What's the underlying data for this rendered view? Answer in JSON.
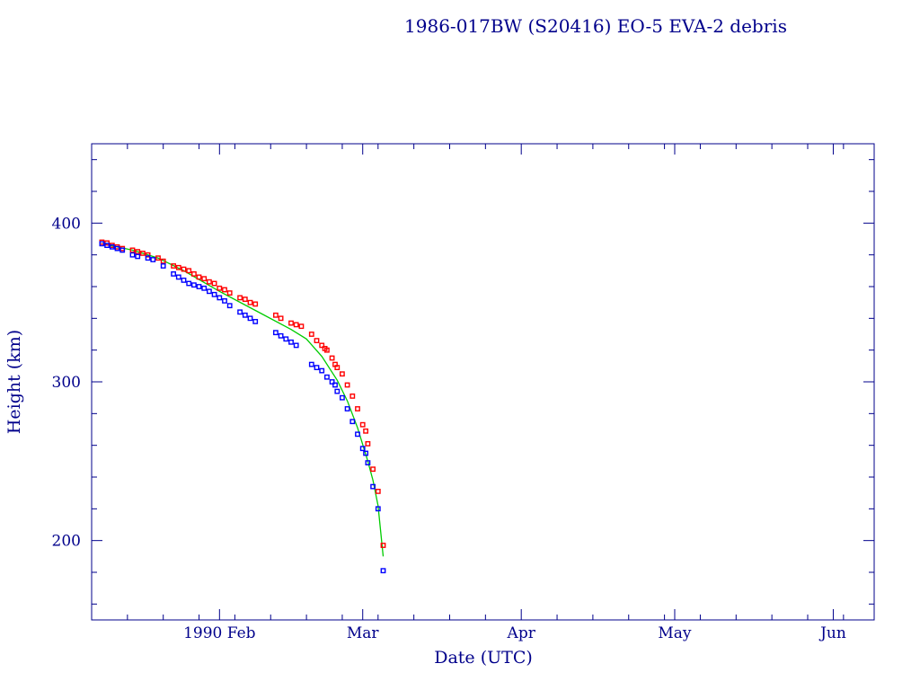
{
  "chart_data": {
    "type": "scatter",
    "title": "1986-017BW (S20416) EO-5 EVA-2 debris",
    "xlabel": "Date (UTC)",
    "ylabel": "Height (km)",
    "x_unit": "date",
    "xlim": [
      "1990-01-07",
      "1990-06-09"
    ],
    "ylim": [
      150,
      450
    ],
    "x_ticks": [
      {
        "date": "1990-02-01",
        "label": "1990 Feb"
      },
      {
        "date": "1990-03-01",
        "label": "Mar"
      },
      {
        "date": "1990-04-01",
        "label": "Apr"
      },
      {
        "date": "1990-05-01",
        "label": "May"
      },
      {
        "date": "1990-06-01",
        "label": "Jun"
      }
    ],
    "y_ticks": [
      200,
      300,
      400
    ],
    "grid": false,
    "legend": "none",
    "series": [
      {
        "role": "apogee",
        "color": "#ff0000",
        "marker": "square",
        "points": [
          [
            "1990-01-09",
            388
          ],
          [
            "1990-01-10",
            387.5
          ],
          [
            "1990-01-11",
            386
          ],
          [
            "1990-01-12",
            385
          ],
          [
            "1990-01-13",
            384
          ],
          [
            "1990-01-15",
            383
          ],
          [
            "1990-01-16",
            382
          ],
          [
            "1990-01-17",
            381
          ],
          [
            "1990-01-18",
            380
          ],
          [
            "1990-01-20",
            378
          ],
          [
            "1990-01-21",
            376
          ],
          [
            "1990-01-23",
            373
          ],
          [
            "1990-01-24",
            372
          ],
          [
            "1990-01-25",
            371
          ],
          [
            "1990-01-26",
            370
          ],
          [
            "1990-01-27",
            368
          ],
          [
            "1990-01-28",
            366
          ],
          [
            "1990-01-29",
            365
          ],
          [
            "1990-01-30",
            363
          ],
          [
            "1990-01-31",
            362
          ],
          [
            "1990-02-01",
            359
          ],
          [
            "1990-02-02",
            358
          ],
          [
            "1990-02-03",
            356
          ],
          [
            "1990-02-05",
            353
          ],
          [
            "1990-02-06",
            352
          ],
          [
            "1990-02-07",
            350
          ],
          [
            "1990-02-08",
            349
          ],
          [
            "1990-02-12",
            342
          ],
          [
            "1990-02-13",
            340
          ],
          [
            "1990-02-15",
            337
          ],
          [
            "1990-02-16",
            336
          ],
          [
            "1990-02-17",
            335
          ],
          [
            "1990-02-19",
            330
          ],
          [
            "1990-02-20",
            326
          ],
          [
            "1990-02-21",
            323
          ],
          [
            "1990-02-21.6",
            321
          ],
          [
            "1990-02-22",
            320
          ],
          [
            "1990-02-23",
            315
          ],
          [
            "1990-02-23.6",
            311
          ],
          [
            "1990-02-24",
            309
          ],
          [
            "1990-02-25",
            305
          ],
          [
            "1990-02-26",
            298
          ],
          [
            "1990-02-27",
            291
          ],
          [
            "1990-02-28",
            283
          ],
          [
            "1990-03-01",
            273
          ],
          [
            "1990-03-01.6",
            269
          ],
          [
            "1990-03-02",
            261
          ],
          [
            "1990-03-03",
            245
          ],
          [
            "1990-03-04",
            231
          ],
          [
            "1990-03-05",
            197
          ]
        ]
      },
      {
        "role": "perigee",
        "color": "#0000ff",
        "marker": "square",
        "points": [
          [
            "1990-01-09",
            387
          ],
          [
            "1990-01-10",
            386
          ],
          [
            "1990-01-11",
            385
          ],
          [
            "1990-01-12",
            384
          ],
          [
            "1990-01-13",
            383
          ],
          [
            "1990-01-15",
            380
          ],
          [
            "1990-01-16",
            379
          ],
          [
            "1990-01-18",
            378
          ],
          [
            "1990-01-19",
            377
          ],
          [
            "1990-01-21",
            373
          ],
          [
            "1990-01-23",
            368
          ],
          [
            "1990-01-24",
            366
          ],
          [
            "1990-01-25",
            364
          ],
          [
            "1990-01-26",
            362
          ],
          [
            "1990-01-27",
            361
          ],
          [
            "1990-01-28",
            360
          ],
          [
            "1990-01-29",
            359
          ],
          [
            "1990-01-30",
            357
          ],
          [
            "1990-01-31",
            355
          ],
          [
            "1990-02-01",
            353
          ],
          [
            "1990-02-02",
            351
          ],
          [
            "1990-02-03",
            348
          ],
          [
            "1990-02-05",
            344
          ],
          [
            "1990-02-06",
            342
          ],
          [
            "1990-02-07",
            340
          ],
          [
            "1990-02-08",
            338
          ],
          [
            "1990-02-12",
            331
          ],
          [
            "1990-02-13",
            329
          ],
          [
            "1990-02-14",
            327
          ],
          [
            "1990-02-15",
            325
          ],
          [
            "1990-02-16",
            323
          ],
          [
            "1990-02-19",
            311
          ],
          [
            "1990-02-20",
            309
          ],
          [
            "1990-02-21",
            307
          ],
          [
            "1990-02-22",
            303
          ],
          [
            "1990-02-23",
            300
          ],
          [
            "1990-02-23.6",
            298
          ],
          [
            "1990-02-24",
            294
          ],
          [
            "1990-02-25",
            290
          ],
          [
            "1990-02-26",
            283
          ],
          [
            "1990-02-27",
            275
          ],
          [
            "1990-02-28",
            267
          ],
          [
            "1990-03-01",
            258
          ],
          [
            "1990-03-01.6",
            255
          ],
          [
            "1990-03-02",
            249
          ],
          [
            "1990-03-03",
            234
          ],
          [
            "1990-03-04",
            220
          ],
          [
            "1990-03-05",
            181
          ]
        ]
      },
      {
        "role": "mean",
        "color": "#00cc00",
        "marker": "line",
        "points": [
          [
            "1990-01-09",
            387
          ],
          [
            "1990-01-15",
            383
          ],
          [
            "1990-01-20",
            378
          ],
          [
            "1990-01-25",
            370
          ],
          [
            "1990-02-01",
            357
          ],
          [
            "1990-02-08",
            345
          ],
          [
            "1990-02-15",
            333
          ],
          [
            "1990-02-18",
            327
          ],
          [
            "1990-02-21",
            316
          ],
          [
            "1990-02-24",
            301
          ],
          [
            "1990-02-26",
            288
          ],
          [
            "1990-02-28",
            271
          ],
          [
            "1990-03-02",
            250
          ],
          [
            "1990-03-03",
            238
          ],
          [
            "1990-03-04",
            222
          ],
          [
            "1990-03-05",
            190
          ]
        ]
      }
    ]
  }
}
